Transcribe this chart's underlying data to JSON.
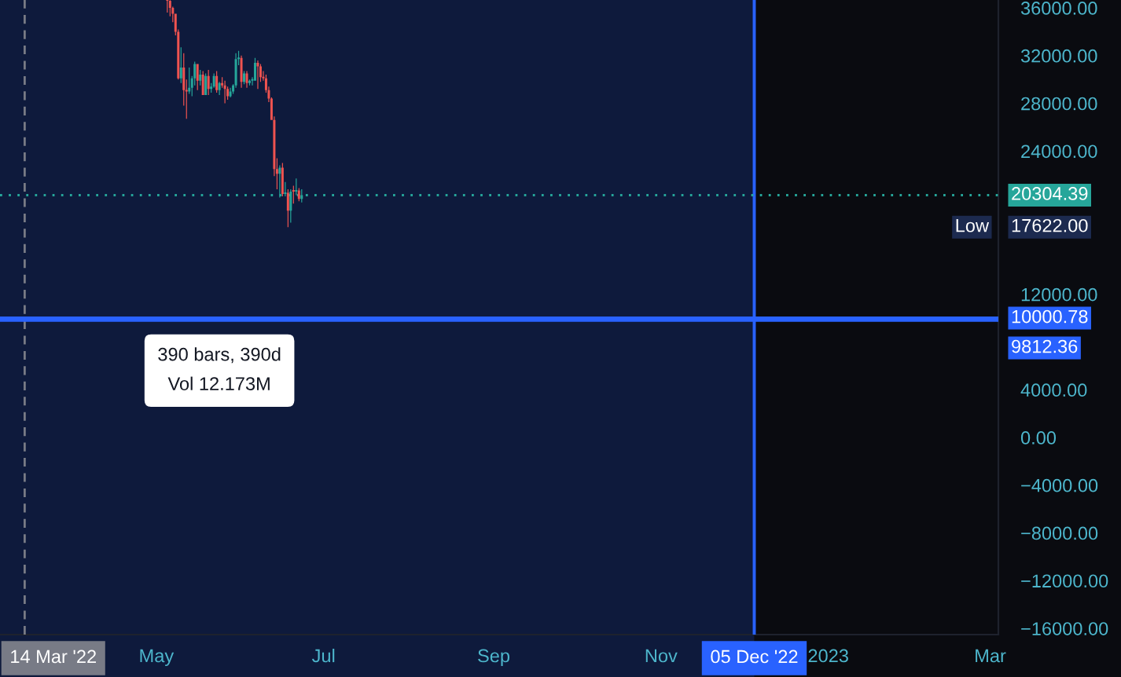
{
  "chart_data": {
    "type": "candlestick",
    "x": [
      "2022-05-05",
      "2022-05-06",
      "2022-05-07",
      "2022-05-08",
      "2022-05-09",
      "2022-05-10",
      "2022-05-11",
      "2022-05-12",
      "2022-05-13",
      "2022-05-14",
      "2022-05-15",
      "2022-05-16",
      "2022-05-17",
      "2022-05-18",
      "2022-05-19",
      "2022-05-20",
      "2022-05-21",
      "2022-05-22",
      "2022-05-23",
      "2022-05-24",
      "2022-05-25",
      "2022-05-26",
      "2022-05-27",
      "2022-05-28",
      "2022-05-29",
      "2022-05-30",
      "2022-05-31",
      "2022-06-01",
      "2022-06-02",
      "2022-06-03",
      "2022-06-04",
      "2022-06-05",
      "2022-06-06",
      "2022-06-07",
      "2022-06-08",
      "2022-06-09",
      "2022-06-10",
      "2022-06-11",
      "2022-06-12",
      "2022-06-13",
      "2022-06-14",
      "2022-06-15",
      "2022-06-16",
      "2022-06-17",
      "2022-06-18",
      "2022-06-19",
      "2022-06-20",
      "2022-06-21",
      "2022-06-22",
      "2022-06-23"
    ],
    "ohlc": [
      [
        36650,
        36650,
        35600,
        36600
      ],
      [
        36600,
        36650,
        35300,
        36000
      ],
      [
        36000,
        36100,
        34800,
        35500
      ],
      [
        35500,
        35500,
        33700,
        34000
      ],
      [
        34000,
        34200,
        30000,
        30100
      ],
      [
        30100,
        32700,
        29700,
        31000
      ],
      [
        31000,
        32200,
        27800,
        29100
      ],
      [
        29100,
        30000,
        26700,
        29000
      ],
      [
        29000,
        31000,
        28800,
        29300
      ],
      [
        29300,
        30300,
        28600,
        30100
      ],
      [
        30100,
        31500,
        29500,
        31300
      ],
      [
        31300,
        31300,
        29100,
        29900
      ],
      [
        29900,
        30800,
        29500,
        30400
      ],
      [
        30400,
        30700,
        28700,
        28700
      ],
      [
        28700,
        30500,
        28700,
        30300
      ],
      [
        30300,
        30800,
        28700,
        29200
      ],
      [
        29200,
        29700,
        28900,
        29400
      ],
      [
        29400,
        30500,
        29300,
        30300
      ],
      [
        30300,
        30700,
        28900,
        29100
      ],
      [
        29100,
        29800,
        28700,
        29700
      ],
      [
        29700,
        30200,
        29300,
        29500
      ],
      [
        29500,
        29900,
        28000,
        29200
      ],
      [
        29200,
        29400,
        28300,
        28600
      ],
      [
        28600,
        29300,
        28500,
        29000
      ],
      [
        29000,
        29600,
        28800,
        29500
      ],
      [
        29500,
        32200,
        29300,
        31700
      ],
      [
        31700,
        32400,
        31200,
        31800
      ],
      [
        31800,
        32000,
        29300,
        29800
      ],
      [
        29800,
        30700,
        29600,
        30500
      ],
      [
        30500,
        30700,
        29300,
        29700
      ],
      [
        29700,
        30000,
        29500,
        29900
      ],
      [
        29900,
        30200,
        29500,
        29900
      ],
      [
        29900,
        31800,
        29900,
        31400
      ],
      [
        31400,
        31600,
        29200,
        31100
      ],
      [
        31100,
        31300,
        29800,
        30200
      ],
      [
        30200,
        30700,
        29900,
        30100
      ],
      [
        30100,
        30400,
        28900,
        29100
      ],
      [
        29100,
        29400,
        28100,
        28400
      ],
      [
        28400,
        28500,
        26600,
        26600
      ],
      [
        26600,
        26900,
        21900,
        22500
      ],
      [
        22500,
        23400,
        20800,
        22100
      ],
      [
        22100,
        22800,
        20100,
        22600
      ],
      [
        22600,
        23000,
        20200,
        20400
      ],
      [
        20400,
        21400,
        20200,
        20500
      ],
      [
        20500,
        20800,
        17622,
        19000
      ],
      [
        19000,
        20800,
        18000,
        20600
      ],
      [
        20600,
        21100,
        19600,
        20600
      ],
      [
        20600,
        21700,
        20300,
        20700
      ],
      [
        20700,
        20900,
        19800,
        20000
      ],
      [
        20000,
        20800,
        19700,
        20304.39
      ]
    ],
    "colors": [
      "#ef5350",
      "#ef5350",
      "#ef5350",
      "#ef5350",
      "#ef5350",
      "#26a69a",
      "#ef5350",
      "#ef5350",
      "#26a69a",
      "#26a69a",
      "#26a69a",
      "#ef5350",
      "#26a69a",
      "#ef5350",
      "#26a69a",
      "#ef5350",
      "#26a69a",
      "#26a69a",
      "#ef5350",
      "#26a69a",
      "#ef5350",
      "#ef5350",
      "#ef5350",
      "#26a69a",
      "#26a69a",
      "#26a69a",
      "#26a69a",
      "#ef5350",
      "#26a69a",
      "#ef5350",
      "#26a69a",
      "#26a69a",
      "#26a69a",
      "#ef5350",
      "#ef5350",
      "#ef5350",
      "#ef5350",
      "#ef5350",
      "#ef5350",
      "#ef5350",
      "#ef5350",
      "#26a69a",
      "#ef5350",
      "#26a69a",
      "#ef5350",
      "#26a69a",
      "#ef5350",
      "#26a69a",
      "#ef5350",
      "#26a69a"
    ],
    "xlim": [
      "2022-03-05",
      "2023-03-04"
    ],
    "xticks": [
      {
        "value": "2022-05-01",
        "label": "May"
      },
      {
        "value": "2022-07-01",
        "label": "Jul"
      },
      {
        "value": "2022-09-01",
        "label": "Sep"
      },
      {
        "value": "2022-11-01",
        "label": "Nov"
      },
      {
        "value": "2023-01-01",
        "label": "2023"
      },
      {
        "value": "2023-03-01",
        "label": "Mar"
      }
    ],
    "ylim": [
      -16520,
      36660
    ],
    "yticks": [
      {
        "value": 36000,
        "label": "36000.00"
      },
      {
        "value": 32000,
        "label": "32000.00"
      },
      {
        "value": 28000,
        "label": "28000.00"
      },
      {
        "value": 24000,
        "label": "24000.00"
      },
      {
        "value": 12000,
        "label": "12000.00"
      },
      {
        "value": 4000,
        "label": "4000.00"
      },
      {
        "value": 0,
        "label": "0.00"
      },
      {
        "value": -4000,
        "label": "−4000.00"
      },
      {
        "value": -8000,
        "label": "−8000.00"
      },
      {
        "value": -12000,
        "label": "−12000.00"
      },
      {
        "value": -16000,
        "label": "−16000.00"
      }
    ],
    "bands": [
      {
        "axis": "x",
        "from": "2021-11-10",
        "to": "2022-12-05",
        "label": "390 bars, 390d\nVol 12.173M",
        "color": "#0e1a3c"
      }
    ],
    "ref_lines": [
      {
        "axis": "x",
        "value": "2022-03-14",
        "label": "14 Mar '22",
        "color": "#787b86",
        "line_style": "dashed"
      },
      {
        "axis": "x",
        "value": "2022-12-05",
        "label": "05 Dec '22",
        "color": "#2962ff",
        "line_style": "solid"
      },
      {
        "axis": "y",
        "value": 20304.39,
        "label": "20304.39",
        "color": "#26a69a",
        "line_style": "dotted"
      },
      {
        "axis": "y",
        "value": 10000.78,
        "label": "10000.78",
        "color": "#2962ff",
        "line_style": "solid"
      },
      {
        "axis": "y",
        "value": 9812.36,
        "label": "9812.36",
        "color": "#2962ff",
        "line_style": "solid"
      }
    ],
    "annotations": [
      "17622.00",
      "Low"
    ]
  }
}
